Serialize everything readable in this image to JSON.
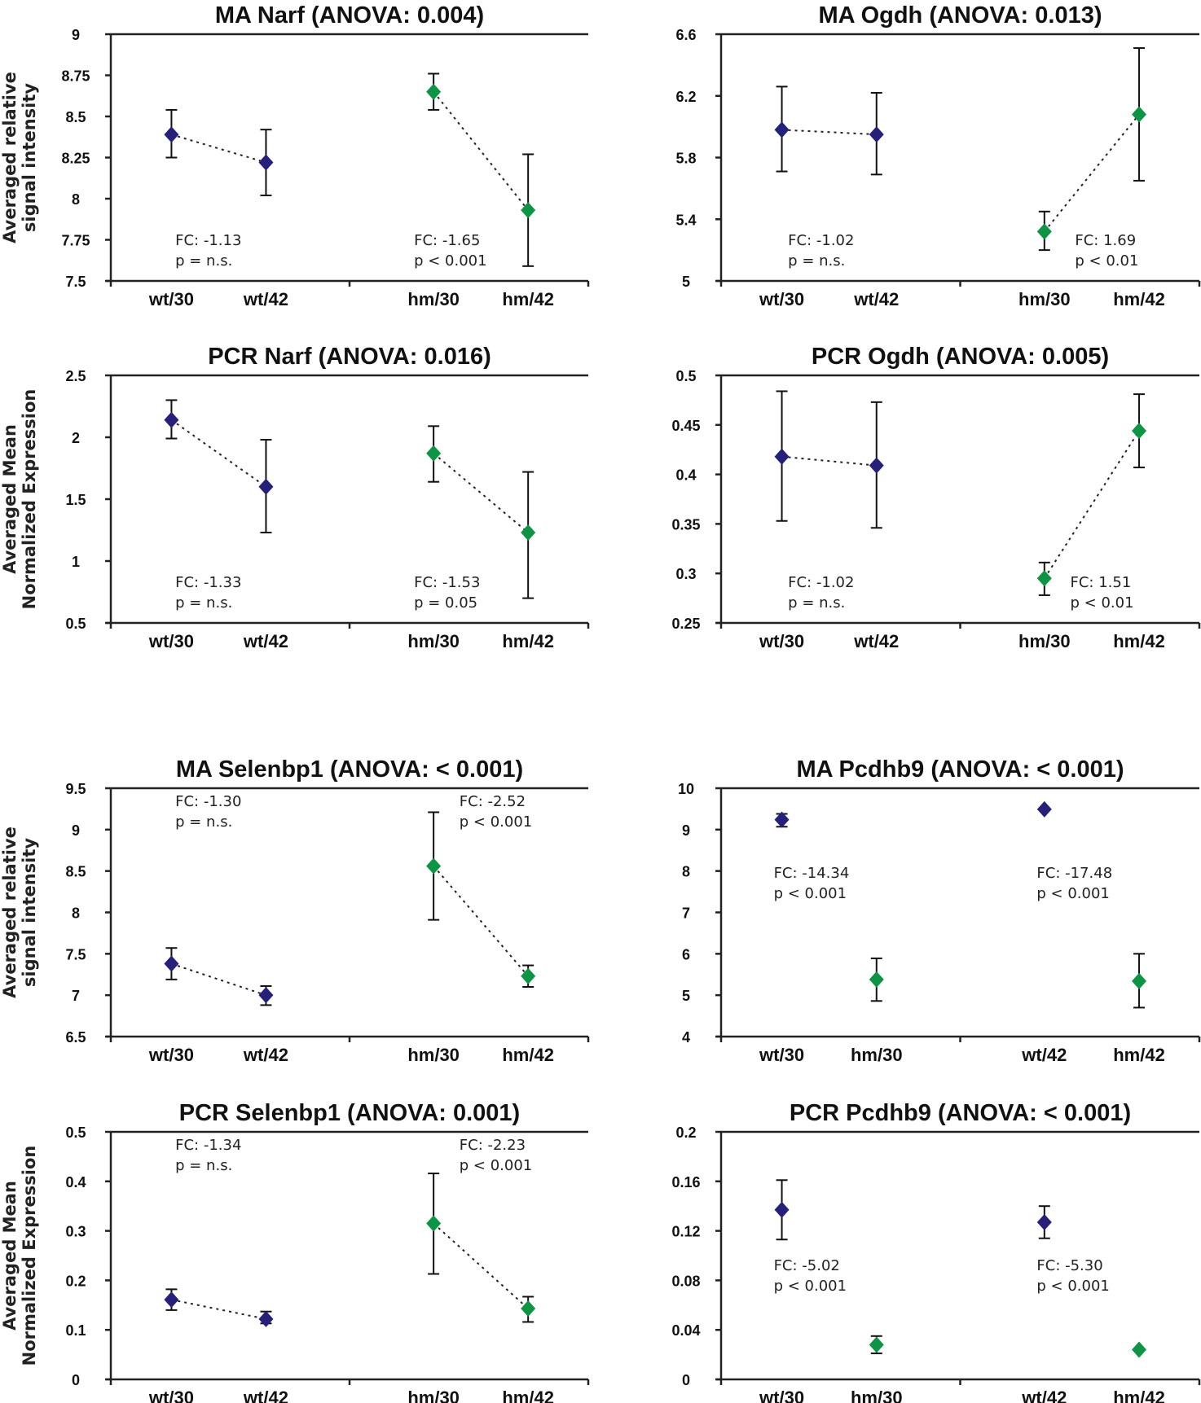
{
  "colors": {
    "wt": "#27207a",
    "hm": "#0d9444",
    "axis": "#222222"
  },
  "chart_data": [
    {
      "id": "ma-narf",
      "type": "scatter",
      "title": "MA Narf (ANOVA: 0.004)",
      "ylabel": [
        "Averaged relative",
        "signal intensity"
      ],
      "ylim": [
        7.5,
        9
      ],
      "yticks": [
        7.5,
        7.75,
        8,
        8.25,
        8.5,
        8.75,
        9
      ],
      "ytick_labels": [
        "7.5",
        "7.75",
        "8",
        "8.25",
        "8.5",
        "8.75",
        "9"
      ],
      "categories": [
        "wt/30",
        "wt/42",
        "hm/30",
        "hm/42"
      ],
      "points": [
        {
          "cat": "wt/30",
          "group": "wt",
          "y": 8.39,
          "lo": 8.25,
          "hi": 8.54
        },
        {
          "cat": "wt/42",
          "group": "wt",
          "y": 8.22,
          "lo": 8.02,
          "hi": 8.42
        },
        {
          "cat": "hm/30",
          "group": "hm",
          "y": 8.65,
          "lo": 8.54,
          "hi": 8.76
        },
        {
          "cat": "hm/42",
          "group": "hm",
          "y": 7.93,
          "lo": 7.59,
          "hi": 8.27
        }
      ],
      "connect": [
        [
          0,
          1
        ],
        [
          2,
          3
        ]
      ],
      "annotations": [
        {
          "lines": [
            "FC: -1.13",
            "p = n.s."
          ],
          "pos": "bottom-left-pair"
        },
        {
          "lines": [
            "FC: -1.65",
            "p < 0.001"
          ],
          "pos": "bottom-right-pair"
        }
      ]
    },
    {
      "id": "ma-ogdh",
      "type": "scatter",
      "title": "MA Ogdh (ANOVA: 0.013)",
      "ylabel": [],
      "ylim": [
        5,
        6.6
      ],
      "yticks": [
        5,
        5.4,
        5.8,
        6.2,
        6.6
      ],
      "ytick_labels": [
        "5",
        "5.4",
        "5.8",
        "6.2",
        "6.6"
      ],
      "categories": [
        "wt/30",
        "wt/42",
        "hm/30",
        "hm/42"
      ],
      "points": [
        {
          "cat": "wt/30",
          "group": "wt",
          "y": 5.98,
          "lo": 5.71,
          "hi": 6.26
        },
        {
          "cat": "wt/42",
          "group": "wt",
          "y": 5.95,
          "lo": 5.69,
          "hi": 6.22
        },
        {
          "cat": "hm/30",
          "group": "hm",
          "y": 5.32,
          "lo": 5.2,
          "hi": 5.45
        },
        {
          "cat": "hm/42",
          "group": "hm",
          "y": 6.08,
          "lo": 5.65,
          "hi": 6.51
        }
      ],
      "connect": [
        [
          0,
          1
        ],
        [
          2,
          3
        ]
      ],
      "annotations": [
        {
          "lines": [
            "FC: -1.02",
            "p = n.s."
          ],
          "pos": "bottom-left-pair"
        },
        {
          "lines": [
            "FC: 1.69",
            "p < 0.01"
          ],
          "pos": "bottom-right-pair"
        }
      ]
    },
    {
      "id": "pcr-narf",
      "type": "scatter",
      "title": "PCR Narf (ANOVA: 0.016)",
      "ylabel": [
        "Averaged Mean",
        "Normalized Expression"
      ],
      "ylim": [
        0.5,
        2.5
      ],
      "yticks": [
        0.5,
        1,
        1.5,
        2,
        2.5
      ],
      "ytick_labels": [
        "0.5",
        "1",
        "1.5",
        "2",
        "2.5"
      ],
      "categories": [
        "wt/30",
        "wt/42",
        "hm/30",
        "hm/42"
      ],
      "points": [
        {
          "cat": "wt/30",
          "group": "wt",
          "y": 2.14,
          "lo": 1.99,
          "hi": 2.3
        },
        {
          "cat": "wt/42",
          "group": "wt",
          "y": 1.6,
          "lo": 1.23,
          "hi": 1.98
        },
        {
          "cat": "hm/30",
          "group": "hm",
          "y": 1.87,
          "lo": 1.64,
          "hi": 2.09
        },
        {
          "cat": "hm/42",
          "group": "hm",
          "y": 1.23,
          "lo": 0.7,
          "hi": 1.72
        }
      ],
      "connect": [
        [
          0,
          1
        ],
        [
          2,
          3
        ]
      ],
      "annotations": [
        {
          "lines": [
            "FC: -1.33",
            "p = n.s."
          ],
          "pos": "bottom-left-pair"
        },
        {
          "lines": [
            "FC: -1.53",
            "p = 0.05"
          ],
          "pos": "bottom-right-pair"
        }
      ]
    },
    {
      "id": "pcr-ogdh",
      "type": "scatter",
      "title": "PCR Ogdh (ANOVA: 0.005)",
      "ylabel": [],
      "ylim": [
        0.25,
        0.5
      ],
      "yticks": [
        0.25,
        0.3,
        0.35,
        0.4,
        0.45,
        0.5
      ],
      "ytick_labels": [
        "0.25",
        "0.3",
        "0.35",
        "0.4",
        "0.45",
        "0.5"
      ],
      "categories": [
        "wt/30",
        "wt/42",
        "hm/30",
        "hm/42"
      ],
      "points": [
        {
          "cat": "wt/30",
          "group": "wt",
          "y": 0.418,
          "lo": 0.353,
          "hi": 0.484
        },
        {
          "cat": "wt/42",
          "group": "wt",
          "y": 0.409,
          "lo": 0.346,
          "hi": 0.473
        },
        {
          "cat": "hm/30",
          "group": "hm",
          "y": 0.295,
          "lo": 0.278,
          "hi": 0.311
        },
        {
          "cat": "hm/42",
          "group": "hm",
          "y": 0.444,
          "lo": 0.407,
          "hi": 0.481
        }
      ],
      "connect": [
        [
          0,
          1
        ],
        [
          2,
          3
        ]
      ],
      "annotations": [
        {
          "lines": [
            "FC: -1.02",
            "p = n.s."
          ],
          "pos": "bottom-left-pair"
        },
        {
          "lines": [
            "FC: 1.51",
            "p < 0.01"
          ],
          "pos": "bottom-right-pair"
        }
      ]
    },
    {
      "id": "ma-selenbp1",
      "type": "scatter",
      "title": "MA Selenbp1 (ANOVA: < 0.001)",
      "ylabel": [
        "Averaged relative",
        "signal intensity"
      ],
      "ylim": [
        6.5,
        9.5
      ],
      "yticks": [
        6.5,
        7,
        7.5,
        8,
        8.5,
        9,
        9.5
      ],
      "ytick_labels": [
        "6.5",
        "7",
        "7.5",
        "8",
        "8.5",
        "9",
        "9.5"
      ],
      "categories": [
        "wt/30",
        "wt/42",
        "hm/30",
        "hm/42"
      ],
      "points": [
        {
          "cat": "wt/30",
          "group": "wt",
          "y": 7.38,
          "lo": 7.19,
          "hi": 7.57
        },
        {
          "cat": "wt/42",
          "group": "wt",
          "y": 7.0,
          "lo": 6.88,
          "hi": 7.11
        },
        {
          "cat": "hm/30",
          "group": "hm",
          "y": 8.56,
          "lo": 7.91,
          "hi": 9.21
        },
        {
          "cat": "hm/42",
          "group": "hm",
          "y": 7.23,
          "lo": 7.1,
          "hi": 7.36
        }
      ],
      "connect": [
        [
          0,
          1
        ],
        [
          2,
          3
        ]
      ],
      "annotations": [
        {
          "lines": [
            "FC: -1.30",
            "p = n.s."
          ],
          "pos": "top-left-pair"
        },
        {
          "lines": [
            "FC: -2.52",
            "p < 0.001"
          ],
          "pos": "top-right-pair"
        }
      ]
    },
    {
      "id": "ma-pcdhb9",
      "type": "scatter",
      "title": "MA Pcdhb9 (ANOVA: < 0.001)",
      "ylabel": [],
      "ylim": [
        4,
        10
      ],
      "yticks": [
        4,
        5,
        6,
        7,
        8,
        9,
        10
      ],
      "ytick_labels": [
        "4",
        "5",
        "6",
        "7",
        "8",
        "9",
        "10"
      ],
      "categories": [
        "wt/30",
        "hm/30",
        "wt/42",
        "hm/42"
      ],
      "points": [
        {
          "cat": "wt/30",
          "group": "wt",
          "y": 9.24,
          "lo": 9.07,
          "hi": 9.38
        },
        {
          "cat": "hm/30",
          "group": "hm",
          "y": 5.38,
          "lo": 4.86,
          "hi": 5.89
        },
        {
          "cat": "wt/42",
          "group": "wt",
          "y": 9.49,
          "lo": 9.49,
          "hi": 9.49
        },
        {
          "cat": "hm/42",
          "group": "hm",
          "y": 5.34,
          "lo": 4.7,
          "hi": 6.0
        }
      ],
      "connect": [],
      "annotations": [
        {
          "lines": [
            "FC: -14.34",
            "p < 0.001"
          ],
          "pos": "middle-left-pair"
        },
        {
          "lines": [
            "FC: -17.48",
            "p < 0.001"
          ],
          "pos": "middle-right-pair"
        }
      ]
    },
    {
      "id": "pcr-selenbp1",
      "type": "scatter",
      "title": "PCR Selenbp1 (ANOVA: 0.001)",
      "ylabel": [
        "Averaged Mean",
        "Normalized Expression"
      ],
      "ylim": [
        0,
        0.5
      ],
      "yticks": [
        0,
        0.1,
        0.2,
        0.3,
        0.4,
        0.5
      ],
      "ytick_labels": [
        "0",
        "0.1",
        "0.2",
        "0.3",
        "0.4",
        "0.5"
      ],
      "categories": [
        "wt/30",
        "wt/42",
        "hm/30",
        "hm/42"
      ],
      "points": [
        {
          "cat": "wt/30",
          "group": "wt",
          "y": 0.161,
          "lo": 0.14,
          "hi": 0.182
        },
        {
          "cat": "wt/42",
          "group": "wt",
          "y": 0.122,
          "lo": 0.113,
          "hi": 0.137
        },
        {
          "cat": "hm/30",
          "group": "hm",
          "y": 0.315,
          "lo": 0.213,
          "hi": 0.416
        },
        {
          "cat": "hm/42",
          "group": "hm",
          "y": 0.143,
          "lo": 0.116,
          "hi": 0.167
        }
      ],
      "connect": [
        [
          0,
          1
        ],
        [
          2,
          3
        ]
      ],
      "annotations": [
        {
          "lines": [
            "FC: -1.34",
            "p = n.s."
          ],
          "pos": "top-left-pair"
        },
        {
          "lines": [
            "FC: -2.23",
            "p < 0.001"
          ],
          "pos": "top-right-pair"
        }
      ]
    },
    {
      "id": "pcr-pcdhb9",
      "type": "scatter",
      "title": "PCR Pcdhb9 (ANOVA: < 0.001)",
      "ylabel": [],
      "ylim": [
        0,
        0.2
      ],
      "yticks": [
        0,
        0.04,
        0.08,
        0.12,
        0.16,
        0.2
      ],
      "ytick_labels": [
        "0",
        "0.04",
        "0.08",
        "0.12",
        "0.16",
        "0.2"
      ],
      "categories": [
        "wt/30",
        "hm/30",
        "wt/42",
        "hm/42"
      ],
      "points": [
        {
          "cat": "wt/30",
          "group": "wt",
          "y": 0.137,
          "lo": 0.113,
          "hi": 0.161
        },
        {
          "cat": "hm/30",
          "group": "hm",
          "y": 0.028,
          "lo": 0.021,
          "hi": 0.035
        },
        {
          "cat": "wt/42",
          "group": "wt",
          "y": 0.127,
          "lo": 0.114,
          "hi": 0.14
        },
        {
          "cat": "hm/42",
          "group": "hm",
          "y": 0.024,
          "lo": 0.024,
          "hi": 0.024
        }
      ],
      "connect": [],
      "annotations": [
        {
          "lines": [
            "FC: -5.02",
            "p < 0.001"
          ],
          "pos": "middle-left-pair"
        },
        {
          "lines": [
            "FC: -5.30",
            "p < 0.001"
          ],
          "pos": "middle-right-pair"
        }
      ]
    }
  ]
}
